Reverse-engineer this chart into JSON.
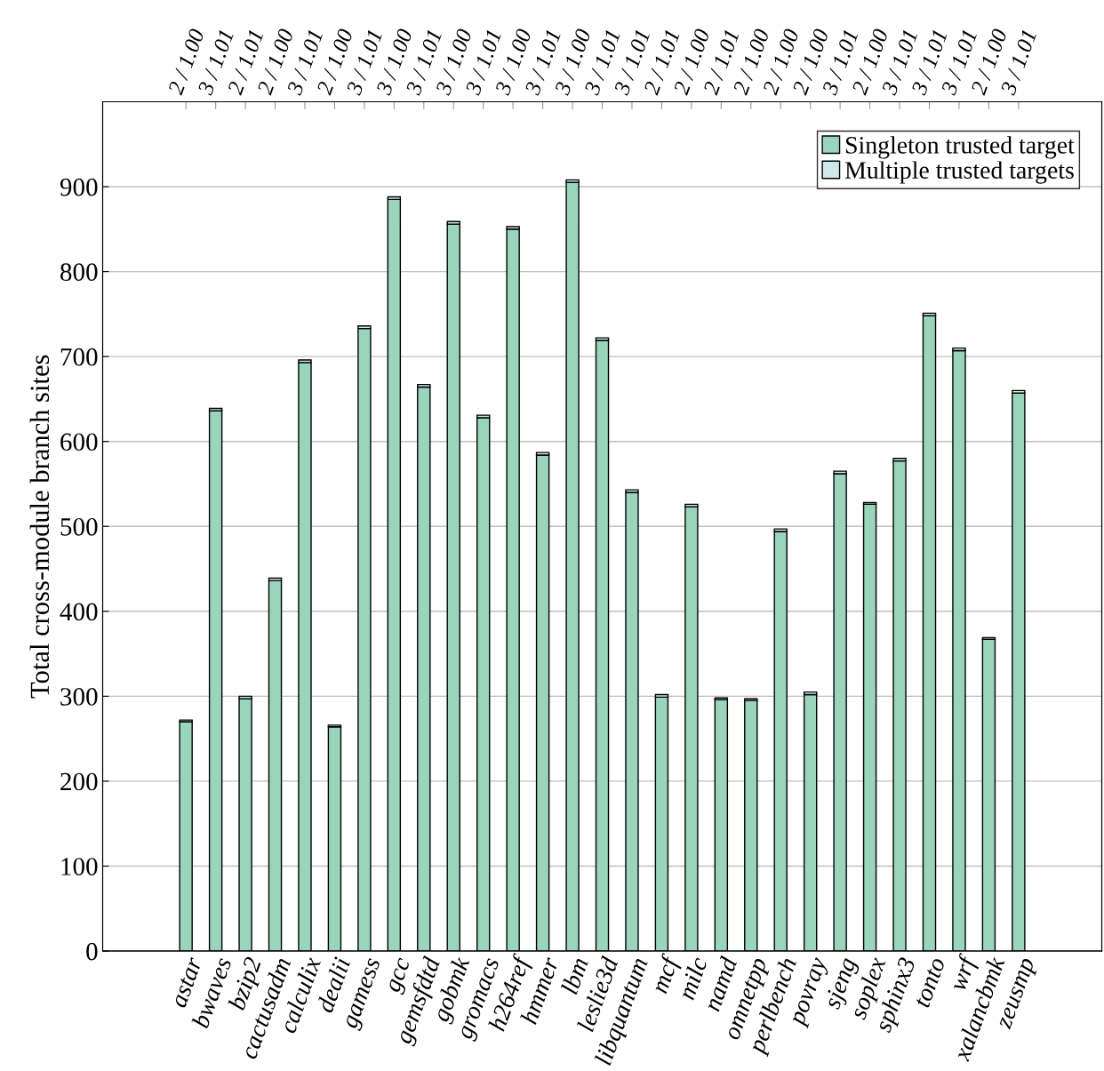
{
  "chart_data": {
    "type": "bar",
    "stacked": true,
    "ylabel": "Total cross-module branch sites",
    "categories": [
      "astar",
      "bwaves",
      "bzip2",
      "cactusadm",
      "calculix",
      "dealii",
      "gamess",
      "gcc",
      "gemsfdtd",
      "gobmk",
      "gromacs",
      "h264ref",
      "hmmer",
      "lbm",
      "leslie3d",
      "libquantum",
      "mcf",
      "milc",
      "namd",
      "omnetpp",
      "perlbench",
      "povray",
      "sjeng",
      "soplex",
      "sphinx3",
      "tonto",
      "wrf",
      "xalancbmk",
      "zeusmp"
    ],
    "series": [
      {
        "name": "Singleton trusted target",
        "color": "#99d5bb",
        "values": [
          270,
          636,
          297,
          436,
          693,
          264,
          733,
          885,
          664,
          856,
          628,
          850,
          584,
          905,
          719,
          540,
          299,
          523,
          296,
          295,
          494,
          302,
          562,
          526,
          577,
          748,
          707,
          367,
          657
        ]
      },
      {
        "name": "Multiple trusted targets",
        "color": "#cde9ec",
        "values": [
          2,
          3,
          3,
          3,
          3,
          2,
          3,
          3,
          3,
          3,
          3,
          3,
          3,
          3,
          3,
          3,
          3,
          3,
          2,
          2,
          3,
          3,
          3,
          2,
          3,
          3,
          3,
          2,
          3
        ]
      }
    ],
    "ylim": [
      0,
      1000
    ],
    "yticks": [
      0,
      100,
      200,
      300,
      400,
      500,
      600,
      700,
      800,
      900
    ],
    "grid": "y",
    "legend": "top right",
    "annotations": [
      "2 / 1.00",
      "3 / 1.01",
      "2 / 1.01",
      "2 / 1.00",
      "3 / 1.01",
      "2 / 1.00",
      "3 / 1.01",
      "3 / 1.00",
      "3 / 1.01",
      "3 / 1.00",
      "3 / 1.01",
      "3 / 1.00",
      "3 / 1.01",
      "3 / 1.00",
      "3 / 1.01",
      "3 / 1.01",
      "2 / 1.01",
      "2 / 1.00",
      "2 / 1.01",
      "2 / 1.00",
      "2 / 1.00",
      "2 / 1.00",
      "3 / 1.01",
      "2 / 1.00",
      "3 / 1.01",
      "3 / 1.01",
      "3 / 1.01",
      "2 / 1.00",
      "3 / 1.01"
    ]
  }
}
